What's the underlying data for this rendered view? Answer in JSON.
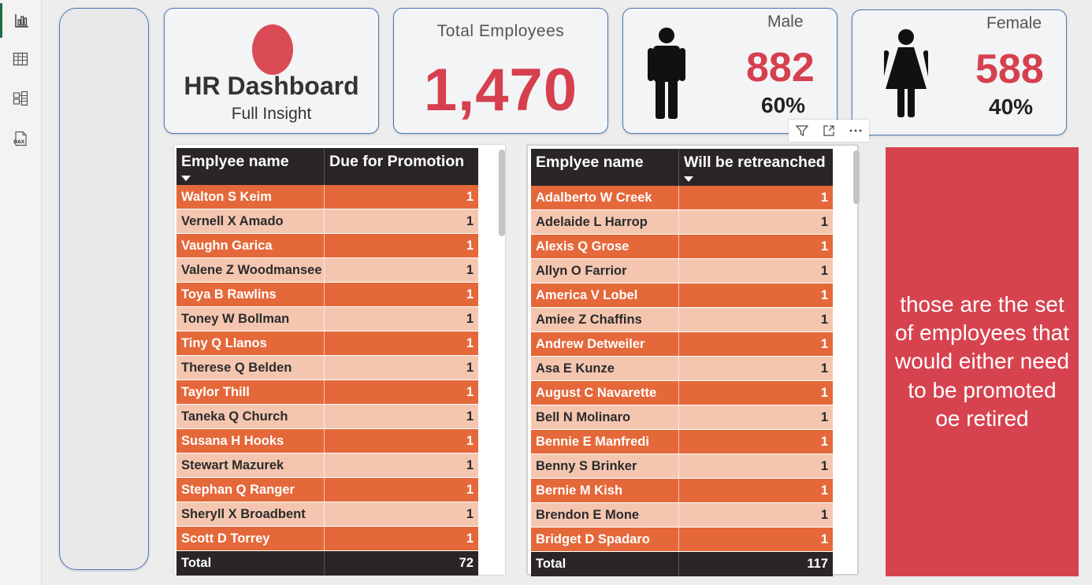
{
  "rail": {
    "items": [
      {
        "name": "report-view",
        "icon": "bar-chart-icon",
        "active": true
      },
      {
        "name": "table-view",
        "icon": "table-grid-icon",
        "active": false
      },
      {
        "name": "model-view",
        "icon": "model-icon",
        "active": false
      },
      {
        "name": "dax-query-view",
        "icon": "dax-icon",
        "active": false,
        "label": "DAX"
      }
    ]
  },
  "title_card": {
    "title": "HR Dashboard",
    "subtitle": "Full Insight"
  },
  "total_card": {
    "label": "Total Employees",
    "value": "1,470"
  },
  "male_card": {
    "label": "Male",
    "value": "882",
    "percent": "60%"
  },
  "female_card": {
    "label": "Female",
    "value": "588",
    "percent": "40%"
  },
  "colors": {
    "accent": "#d6404e",
    "row_dark": "#e5683a",
    "row_light": "#f4c6b0",
    "header": "#2a2626",
    "card_border": "#4a78b5"
  },
  "promotion_table": {
    "columns": [
      "Emplyee name",
      "Due for Promotion"
    ],
    "rows": [
      [
        "Walton S Keim",
        "1"
      ],
      [
        "Vernell X Amado",
        "1"
      ],
      [
        "Vaughn Garica",
        "1"
      ],
      [
        "Valene Z Woodmansee",
        "1"
      ],
      [
        "Toya B Rawlins",
        "1"
      ],
      [
        "Toney W Bollman",
        "1"
      ],
      [
        "Tiny Q Llanos",
        "1"
      ],
      [
        "Therese Q Belden",
        "1"
      ],
      [
        "Taylor Thill",
        "1"
      ],
      [
        "Taneka Q Church",
        "1"
      ],
      [
        "Susana H Hooks",
        "1"
      ],
      [
        "Stewart Mazurek",
        "1"
      ],
      [
        "Stephan Q Ranger",
        "1"
      ],
      [
        "Sheryll X Broadbent",
        "1"
      ],
      [
        "Scott D Torrey",
        "1"
      ]
    ],
    "total_label": "Total",
    "total_value": "72"
  },
  "retrench_table": {
    "columns": [
      "Emplyee name",
      "Will be retreanched"
    ],
    "rows": [
      [
        "Adalberto W Creek",
        "1"
      ],
      [
        "Adelaide L Harrop",
        "1"
      ],
      [
        "Alexis Q Grose",
        "1"
      ],
      [
        "Allyn O Farrior",
        "1"
      ],
      [
        "America V Lobel",
        "1"
      ],
      [
        "Amiee Z Chaffins",
        "1"
      ],
      [
        "Andrew Detweiler",
        "1"
      ],
      [
        "Asa E Kunze",
        "1"
      ],
      [
        "August C Navarette",
        "1"
      ],
      [
        "Bell N Molinaro",
        "1"
      ],
      [
        "Bennie E Manfredi",
        "1"
      ],
      [
        "Benny S Brinker",
        "1"
      ],
      [
        "Bernie M Kish",
        "1"
      ],
      [
        "Brendon E Mone",
        "1"
      ],
      [
        "Bridget D Spadaro",
        "1"
      ]
    ],
    "total_label": "Total",
    "total_value": "117"
  },
  "toolbar": {
    "items": [
      "filter-icon",
      "focus-mode-icon",
      "more-options-icon"
    ]
  },
  "note": {
    "text": "those are the set of employees that would either need to be promoted oe retired"
  }
}
